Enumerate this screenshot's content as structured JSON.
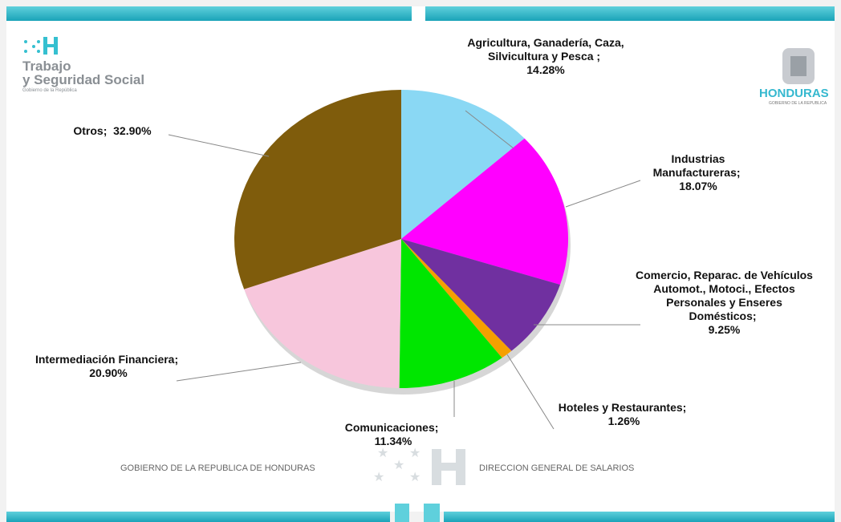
{
  "chart_data": {
    "type": "pie",
    "categories": [
      "Agricultura, Ganadería, Caza, Silvicultura y Pesca ;",
      "Industrias Manufactureras;",
      "Comercio, Reparac. de Vehículos Automot., Motoci., Efectos Personales y Enseres Domésticos;",
      "Hoteles y Restaurantes;",
      "Comunicaciones;",
      "Intermediación Financiera;",
      "Otros;"
    ],
    "values": [
      14.28,
      18.07,
      9.25,
      1.26,
      11.34,
      20.9,
      32.9
    ],
    "value_labels": [
      "14.28%",
      "18.07%",
      "9.25%",
      "1.26%",
      "11.34%",
      "20.90%",
      "32.90%"
    ],
    "colors": [
      "#8ad8f4",
      "#ff00ff",
      "#7030a0",
      "#f5a000",
      "#00e600",
      "#f7c6dc",
      "#7f5c0c"
    ]
  },
  "logo_left": {
    "line1": "Trabajo",
    "line2": "y Seguridad Social",
    "small": "Gobierno de la República"
  },
  "logo_right": {
    "name": "HONDURAS",
    "small": "GOBIERNO DE LA REPUBLICA"
  },
  "footer": {
    "left": "GOBIERNO DE LA REPUBLICA DE HONDURAS",
    "right": "DIRECCION GENERAL DE SALARIOS"
  }
}
